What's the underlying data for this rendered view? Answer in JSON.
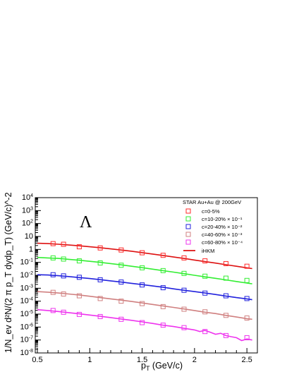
{
  "chart_data": {
    "type": "scatter",
    "panel_label": "Λ",
    "xlabel": {
      "main": "p",
      "sub": "T",
      "rest": " (GeV/c)"
    },
    "ylabel": "1/N_ev d²N/(2 π p_T dydp_T) (GeV/c)^-2",
    "xlim": [
      0.48,
      2.6
    ],
    "ylim_log10": [
      -8,
      4
    ],
    "log_y": true,
    "x_ticks": [
      "0.5",
      "1",
      "1.5",
      "2",
      "2.5"
    ],
    "y_ticks": [
      {
        "base": "10",
        "exp": "-8"
      },
      {
        "base": "10",
        "exp": "-7"
      },
      {
        "base": "10",
        "exp": "-6"
      },
      {
        "base": "10",
        "exp": "-5"
      },
      {
        "base": "10",
        "exp": "-4"
      },
      {
        "base": "10",
        "exp": "-3"
      },
      {
        "base": "10",
        "exp": "-2"
      },
      {
        "base": "10",
        "exp": "-1"
      },
      {
        "base": "1",
        "exp": ""
      },
      {
        "base": "10",
        "exp": ""
      },
      {
        "base": "10",
        "exp": "2"
      },
      {
        "base": "10",
        "exp": "3"
      },
      {
        "base": "10",
        "exp": "4"
      }
    ],
    "grid": false,
    "legend_position": "top-right",
    "legend_title": "STAR Au+Au @ 200GeV",
    "series": [
      {
        "name": "c=0-5%",
        "color": "#ff2a2a",
        "x": [
          0.65,
          0.75,
          0.9,
          1.1,
          1.3,
          1.5,
          1.7,
          1.9,
          2.1,
          2.3,
          2.5
        ],
        "y": [
          2.8,
          2.5,
          1.6,
          1.3,
          0.9,
          0.55,
          0.35,
          0.22,
          0.13,
          0.08,
          0.05
        ]
      },
      {
        "name": "c=10-20% × 10⁻¹",
        "color": "#33ee33",
        "x": [
          0.65,
          0.75,
          0.9,
          1.1,
          1.3,
          1.5,
          1.7,
          1.9,
          2.1,
          2.3,
          2.5
        ],
        "y": [
          0.22,
          0.18,
          0.13,
          0.09,
          0.06,
          0.038,
          0.023,
          0.014,
          0.0085,
          0.006,
          0.004
        ]
      },
      {
        "name": "c=20-40% × 10⁻²",
        "color": "#2222dd",
        "x": [
          0.65,
          0.75,
          0.9,
          1.1,
          1.3,
          1.5,
          1.7,
          1.9,
          2.1,
          2.3,
          2.5
        ],
        "y": [
          0.011,
          0.009,
          0.007,
          0.0045,
          0.003,
          0.0018,
          0.0011,
          0.0007,
          0.00042,
          0.00026,
          0.00016
        ]
      },
      {
        "name": "c=40-60% × 10⁻³",
        "color": "#d08080",
        "x": [
          0.65,
          0.75,
          0.9,
          1.1,
          1.3,
          1.5,
          1.7,
          1.9,
          2.1,
          2.3,
          2.5
        ],
        "y": [
          0.00048,
          0.00036,
          0.00026,
          0.00016,
          0.0001,
          6.5e-05,
          3.8e-05,
          2.4e-05,
          1.5e-05,
          8e-06,
          5e-06
        ]
      },
      {
        "name": "c=60-80% × 10⁻⁴",
        "color": "#ee33ee",
        "x": [
          0.65,
          0.75,
          0.9,
          1.1,
          1.3,
          1.5,
          1.7,
          1.9,
          2.1,
          2.3,
          2.5
        ],
        "y": [
          1.9e-05,
          1.4e-05,
          9.5e-06,
          6.5e-06,
          4e-06,
          2.2e-06,
          1.4e-06,
          9e-07,
          4.5e-07,
          2.2e-07,
          1.5e-07
        ]
      }
    ],
    "model_label": "iHKM",
    "model_color": "#dd1111",
    "model_curves": [
      {
        "color": "#dd1111",
        "x": [
          0.5,
          0.6,
          0.7,
          0.8,
          0.9,
          1.0,
          1.1,
          1.2,
          1.3,
          1.4,
          1.5,
          1.6,
          1.7,
          1.8,
          1.9,
          2.0,
          2.1,
          2.2,
          2.3,
          2.4,
          2.5,
          2.55
        ],
        "y": [
          3.0,
          2.8,
          2.5,
          2.2,
          1.9,
          1.6,
          1.35,
          1.1,
          0.9,
          0.72,
          0.56,
          0.44,
          0.34,
          0.26,
          0.2,
          0.15,
          0.115,
          0.088,
          0.066,
          0.05,
          0.038,
          0.033
        ]
      },
      {
        "color": "#33ee33",
        "x": [
          0.5,
          0.6,
          0.7,
          0.8,
          0.9,
          1.0,
          1.1,
          1.2,
          1.3,
          1.4,
          1.5,
          1.6,
          1.7,
          1.8,
          1.9,
          2.0,
          2.1,
          2.2,
          2.3,
          2.4,
          2.5,
          2.55
        ],
        "y": [
          0.24,
          0.22,
          0.2,
          0.17,
          0.145,
          0.12,
          0.1,
          0.08,
          0.064,
          0.05,
          0.039,
          0.03,
          0.023,
          0.0175,
          0.0133,
          0.01,
          0.0076,
          0.0058,
          0.0044,
          0.0033,
          0.0025,
          0.0022
        ]
      },
      {
        "color": "#2222dd",
        "x": [
          0.5,
          0.6,
          0.7,
          0.8,
          0.9,
          1.0,
          1.1,
          1.2,
          1.3,
          1.4,
          1.5,
          1.6,
          1.7,
          1.8,
          1.9,
          2.0,
          2.1,
          2.2,
          2.3,
          2.4,
          2.5,
          2.55
        ],
        "y": [
          0.011,
          0.0105,
          0.0093,
          0.008,
          0.0067,
          0.0056,
          0.0046,
          0.0037,
          0.003,
          0.0024,
          0.0019,
          0.0015,
          0.0012,
          0.0009,
          0.0007,
          0.00055,
          0.00043,
          0.00033,
          0.00025,
          0.00019,
          0.00015,
          0.00013
        ]
      },
      {
        "color": "#d08080",
        "x": [
          0.5,
          0.6,
          0.7,
          0.8,
          0.9,
          1.0,
          1.1,
          1.2,
          1.3,
          1.4,
          1.5,
          1.6,
          1.7,
          1.8,
          1.9,
          2.0,
          2.1,
          2.2,
          2.3,
          2.4,
          2.5,
          2.55
        ],
        "y": [
          0.00055,
          0.0005,
          0.00043,
          0.00036,
          0.0003,
          0.00024,
          0.00019,
          0.00015,
          0.00012,
          9.5e-05,
          7.3e-05,
          5.6e-05,
          4.3e-05,
          3.3e-05,
          2.5e-05,
          1.9e-05,
          1.4e-05,
          1.1e-05,
          8e-06,
          6e-06,
          4.5e-06,
          4e-06
        ]
      },
      {
        "color": "#ee33ee",
        "x": [
          0.5,
          0.6,
          0.7,
          0.8,
          0.9,
          1.0,
          1.1,
          1.2,
          1.3,
          1.4,
          1.5,
          1.6,
          1.7,
          1.8,
          1.9,
          2.0,
          2.05,
          2.1,
          2.15,
          2.2,
          2.25,
          2.3,
          2.35,
          2.4,
          2.45,
          2.5,
          2.55
        ],
        "y": [
          2.2e-05,
          1.9e-05,
          1.6e-05,
          1.3e-05,
          1.05e-05,
          8.5e-06,
          6.8e-06,
          5.4e-06,
          4.2e-06,
          3.3e-06,
          2.5e-06,
          1.9e-06,
          1.4e-06,
          1.1e-06,
          8e-07,
          6e-07,
          4.5e-07,
          5.5e-07,
          4e-07,
          2.8e-07,
          3.3e-07,
          2.2e-07,
          1.8e-07,
          1.5e-07,
          9e-08,
          1.2e-07,
          1e-07
        ]
      }
    ]
  }
}
